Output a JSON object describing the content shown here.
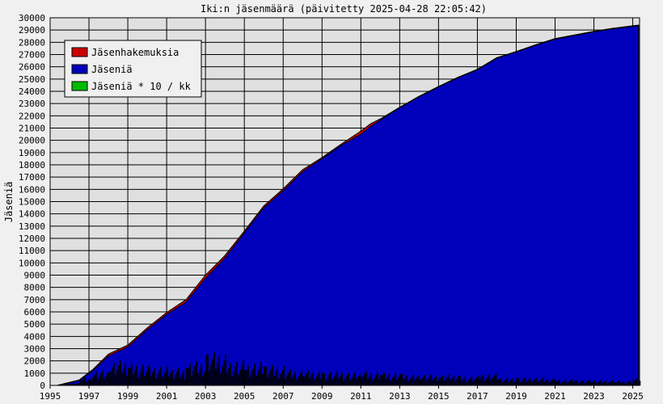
{
  "chart_data": {
    "type": "area",
    "title": "Iki:n jäsenmäärä (päivitetty 2025-04-28 22:05:42)",
    "ylabel": "Jäseniä",
    "xlabel": "",
    "xlim": [
      1995.0,
      2025.35
    ],
    "ylim": [
      0,
      30000
    ],
    "x_ticks": [
      "1995",
      "1997",
      "1999",
      "2001",
      "2003",
      "2005",
      "2007",
      "2009",
      "2011",
      "2013",
      "2015",
      "2017",
      "2019",
      "2021",
      "2023",
      "2025"
    ],
    "y_ticks": [
      "0",
      "1000",
      "2000",
      "3000",
      "4000",
      "5000",
      "6000",
      "7000",
      "8000",
      "9000",
      "10000",
      "11000",
      "12000",
      "13000",
      "14000",
      "15000",
      "16000",
      "17000",
      "18000",
      "19000",
      "20000",
      "21000",
      "22000",
      "23000",
      "24000",
      "25000",
      "26000",
      "27000",
      "28000",
      "29000",
      "30000"
    ],
    "grid": true,
    "legend_position": "top-left",
    "colors": {
      "applications": "#cc0000",
      "members": "#0000bb",
      "monthly_x10": "#00bb00",
      "plot_bg": "#e0e0e0",
      "page_bg": "#f0f0f0"
    },
    "series": [
      {
        "name": "Jäsenhakemuksia",
        "x": [
          1995.4,
          1996.5,
          1997.2,
          1998.0,
          1999.0,
          2000.0,
          2001.0,
          2002.0,
          2003.0,
          2004.0,
          2005.0,
          2006.0,
          2007.0,
          2008.0,
          2009.0,
          2010.0,
          2011.0,
          2011.5,
          2012.0,
          2013.0,
          2014.0,
          2015.0,
          2016.0,
          2017.0,
          2018.0,
          2019.0,
          2020.0,
          2021.0,
          2022.0,
          2023.0,
          2024.0,
          2025.0,
          2025.3
        ],
        "y": [
          20,
          450,
          1300,
          2550,
          3300,
          4700,
          5950,
          7000,
          9000,
          10600,
          12600,
          14650,
          16050,
          17600,
          18600,
          19700,
          20750,
          21350,
          21750,
          22700,
          23600,
          24400,
          25150,
          25800,
          26750,
          27250,
          27800,
          28300,
          28600,
          28900,
          29150,
          29350,
          29400
        ]
      },
      {
        "name": "Jäseniä",
        "x": [
          1995.4,
          1996.5,
          1997.2,
          1998.0,
          1999.0,
          2000.0,
          2001.0,
          2002.0,
          2003.0,
          2004.0,
          2005.0,
          2006.0,
          2007.0,
          2008.0,
          2009.0,
          2010.0,
          2011.0,
          2011.5,
          2012.0,
          2013.0,
          2014.0,
          2015.0,
          2016.0,
          2017.0,
          2018.0,
          2019.0,
          2020.0,
          2021.0,
          2022.0,
          2023.0,
          2024.0,
          2025.0,
          2025.3
        ],
        "y": [
          0,
          400,
          1200,
          2400,
          3150,
          4550,
          5800,
          6800,
          8750,
          10400,
          12450,
          14500,
          15900,
          17450,
          18500,
          19600,
          20500,
          21150,
          21650,
          22650,
          23550,
          24350,
          25100,
          25750,
          26700,
          27200,
          27750,
          28250,
          28550,
          28850,
          29100,
          29300,
          29350
        ]
      },
      {
        "name": "Jäseniä * 10 / kk",
        "x": [
          1995.5,
          1996.5,
          1997.0,
          1998.0,
          1999.0,
          2000.0,
          2001.0,
          2002.0,
          2003.0,
          2004.0,
          2005.0,
          2006.0,
          2007.0,
          2008.0,
          2009.0,
          2010.0,
          2011.0,
          2012.0,
          2013.0,
          2014.0,
          2015.0,
          2016.0,
          2017.0,
          2018.0,
          2019.0,
          2020.0,
          2021.0,
          2022.0,
          2023.0,
          2024.0,
          2025.0
        ],
        "y": [
          150,
          500,
          900,
          1500,
          1400,
          1200,
          1100,
          1500,
          2000,
          1600,
          1400,
          1300,
          1000,
          900,
          900,
          800,
          900,
          800,
          700,
          700,
          650,
          600,
          750,
          500,
          500,
          450,
          400,
          350,
          350,
          300,
          400
        ]
      }
    ]
  }
}
